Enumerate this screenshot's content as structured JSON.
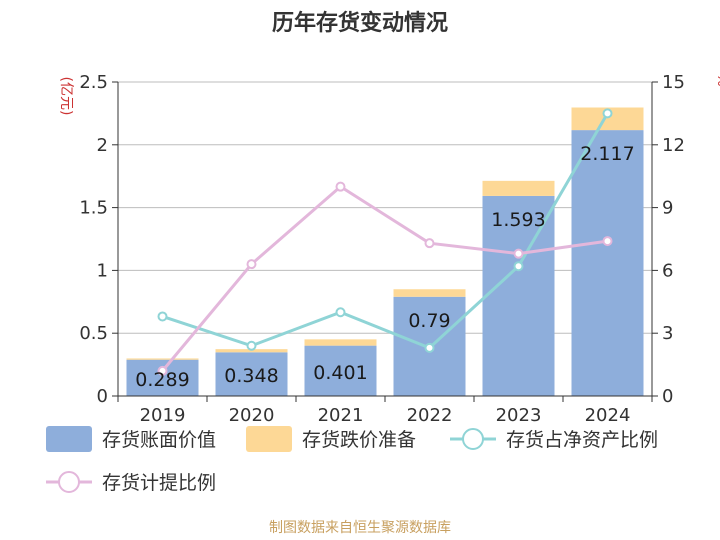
{
  "chart_data": {
    "type": "bar",
    "title": "历年存货变动情况",
    "categories": [
      "2019",
      "2020",
      "2021",
      "2022",
      "2023",
      "2024"
    ],
    "left_axis": {
      "unit": "(亿元)",
      "ticks": [
        "0",
        "0.5",
        "1",
        "1.5",
        "2",
        "2.5"
      ],
      "ylim": [
        0,
        2.5
      ]
    },
    "right_axis": {
      "unit": "%",
      "ticks": [
        "0",
        "3",
        "6",
        "9",
        "12",
        "15"
      ],
      "ylim": [
        0,
        15
      ]
    },
    "bar_series": [
      {
        "name": "存货账面价值",
        "color": "#8eaedb",
        "values": [
          0.289,
          0.348,
          0.401,
          0.79,
          1.593,
          2.117
        ],
        "labels": [
          "0.289",
          "0.348",
          "0.401",
          "0.79",
          "1.593",
          "2.117"
        ]
      },
      {
        "name": "存货跌价准备",
        "color": "#fdd896",
        "values": [
          0.01,
          0.025,
          0.05,
          0.06,
          0.12,
          0.18
        ]
      }
    ],
    "line_series": [
      {
        "name": "存货占净资产比例",
        "color": "#8fd4d6",
        "axis": "right",
        "values": [
          3.8,
          2.4,
          4.0,
          2.3,
          6.2,
          13.5
        ]
      },
      {
        "name": "存货计提比例",
        "color": "#e3b7db",
        "axis": "right",
        "values": [
          1.2,
          6.3,
          10.0,
          7.3,
          6.8,
          7.4
        ]
      }
    ],
    "grid": true,
    "legend_position": "bottom"
  },
  "source": "制图数据来自恒生聚源数据库"
}
